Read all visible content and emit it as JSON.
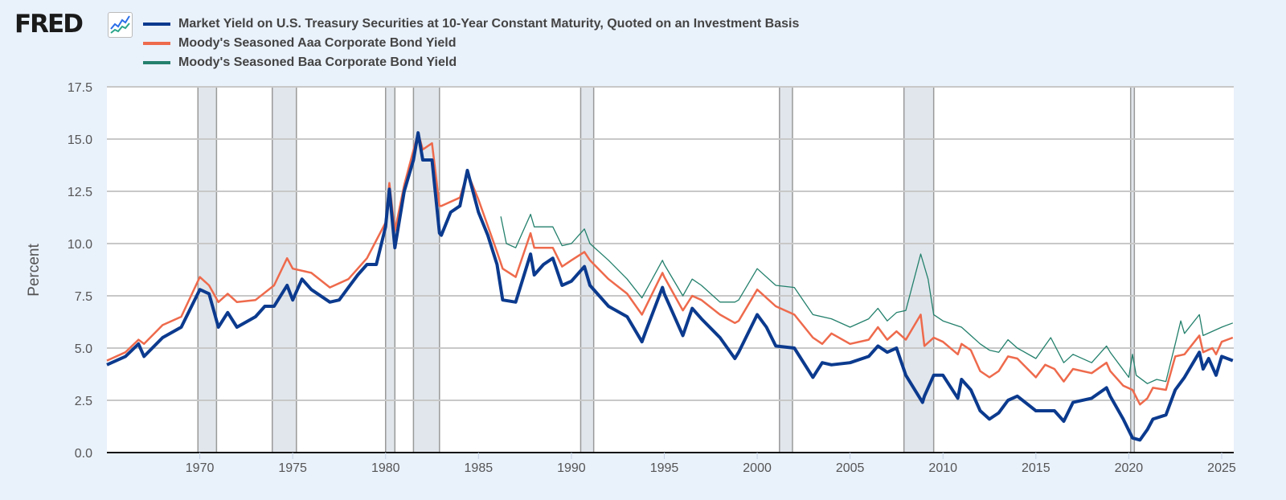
{
  "logo": {
    "text": "FRED",
    "icon": "chart-line-icon"
  },
  "chart_data": {
    "type": "line",
    "title": "",
    "xlabel": "",
    "ylabel": "Percent",
    "xlim": [
      1965.0,
      2025.65
    ],
    "ylim": [
      0,
      17.5
    ],
    "yticks": [
      "0.0",
      "2.5",
      "5.0",
      "7.5",
      "10.0",
      "12.5",
      "15.0",
      "17.5"
    ],
    "xticks": [
      "1970",
      "1975",
      "1980",
      "1985",
      "1990",
      "1995",
      "2000",
      "2005",
      "2010",
      "2015",
      "2020",
      "2025"
    ],
    "grid": true,
    "legend_position": "top-left",
    "recessions": [
      [
        1969.9,
        1970.9
      ],
      [
        1973.9,
        1975.2
      ],
      [
        1980.0,
        1980.5
      ],
      [
        1981.5,
        1982.9
      ],
      [
        1990.5,
        1991.2
      ],
      [
        2001.2,
        2001.9
      ],
      [
        2007.9,
        2009.5
      ],
      [
        2020.1,
        2020.3
      ]
    ],
    "series": [
      {
        "name": "Market Yield on U.S. Treasury Securities at 10-Year Constant Maturity, Quoted on an Investment Basis",
        "color": "#0b3a8e",
        "width": 4,
        "points": [
          [
            1965,
            4.2
          ],
          [
            1966,
            4.6
          ],
          [
            1966.7,
            5.2
          ],
          [
            1967,
            4.6
          ],
          [
            1968,
            5.5
          ],
          [
            1969,
            6.0
          ],
          [
            1970,
            7.8
          ],
          [
            1970.5,
            7.6
          ],
          [
            1971,
            6.0
          ],
          [
            1971.5,
            6.7
          ],
          [
            1972,
            6.0
          ],
          [
            1973,
            6.5
          ],
          [
            1973.5,
            7.0
          ],
          [
            1974,
            7.0
          ],
          [
            1974.7,
            8.0
          ],
          [
            1975,
            7.3
          ],
          [
            1975.5,
            8.3
          ],
          [
            1976,
            7.8
          ],
          [
            1977,
            7.2
          ],
          [
            1977.5,
            7.3
          ],
          [
            1978,
            7.9
          ],
          [
            1978.5,
            8.5
          ],
          [
            1979,
            9.0
          ],
          [
            1979.5,
            9.0
          ],
          [
            1980,
            10.8
          ],
          [
            1980.2,
            12.6
          ],
          [
            1980.5,
            9.8
          ],
          [
            1981,
            12.5
          ],
          [
            1981.5,
            14.0
          ],
          [
            1981.75,
            15.3
          ],
          [
            1982,
            14.0
          ],
          [
            1982.5,
            14.0
          ],
          [
            1982.9,
            10.5
          ],
          [
            1983,
            10.4
          ],
          [
            1983.5,
            11.5
          ],
          [
            1984,
            11.8
          ],
          [
            1984.4,
            13.5
          ],
          [
            1985,
            11.5
          ],
          [
            1985.5,
            10.4
          ],
          [
            1986,
            9.0
          ],
          [
            1986.3,
            7.3
          ],
          [
            1987,
            7.2
          ],
          [
            1987.8,
            9.5
          ],
          [
            1988,
            8.5
          ],
          [
            1988.5,
            9.0
          ],
          [
            1989,
            9.3
          ],
          [
            1989.5,
            8.0
          ],
          [
            1990,
            8.2
          ],
          [
            1990.7,
            8.9
          ],
          [
            1991,
            8.0
          ],
          [
            1992,
            7.0
          ],
          [
            1993,
            6.5
          ],
          [
            1993.8,
            5.3
          ],
          [
            1994,
            5.8
          ],
          [
            1994.9,
            7.9
          ],
          [
            1995,
            7.6
          ],
          [
            1996,
            5.6
          ],
          [
            1996.5,
            6.9
          ],
          [
            1997,
            6.4
          ],
          [
            1998,
            5.5
          ],
          [
            1998.8,
            4.5
          ],
          [
            1999,
            4.8
          ],
          [
            2000,
            6.6
          ],
          [
            2000.5,
            6.0
          ],
          [
            2001,
            5.1
          ],
          [
            2002,
            5.0
          ],
          [
            2003,
            3.6
          ],
          [
            2003.5,
            4.3
          ],
          [
            2004,
            4.2
          ],
          [
            2005,
            4.3
          ],
          [
            2006,
            4.6
          ],
          [
            2006.5,
            5.1
          ],
          [
            2007,
            4.8
          ],
          [
            2007.5,
            5.0
          ],
          [
            2008,
            3.7
          ],
          [
            2008.9,
            2.4
          ],
          [
            2009,
            2.7
          ],
          [
            2009.5,
            3.7
          ],
          [
            2010,
            3.7
          ],
          [
            2010.8,
            2.6
          ],
          [
            2011,
            3.5
          ],
          [
            2011.5,
            3.0
          ],
          [
            2012,
            2.0
          ],
          [
            2012.5,
            1.6
          ],
          [
            2013,
            1.9
          ],
          [
            2013.5,
            2.5
          ],
          [
            2014,
            2.7
          ],
          [
            2015,
            2.0
          ],
          [
            2016,
            2.0
          ],
          [
            2016.5,
            1.5
          ],
          [
            2017,
            2.4
          ],
          [
            2018,
            2.6
          ],
          [
            2018.8,
            3.1
          ],
          [
            2019,
            2.7
          ],
          [
            2019.7,
            1.6
          ],
          [
            2020.2,
            0.7
          ],
          [
            2020.6,
            0.6
          ],
          [
            2021,
            1.1
          ],
          [
            2021.3,
            1.6
          ],
          [
            2022,
            1.8
          ],
          [
            2022.5,
            3.0
          ],
          [
            2023,
            3.6
          ],
          [
            2023.8,
            4.8
          ],
          [
            2024,
            4.0
          ],
          [
            2024.3,
            4.5
          ],
          [
            2024.7,
            3.7
          ],
          [
            2025,
            4.6
          ],
          [
            2025.6,
            4.4
          ]
        ]
      },
      {
        "name": "Moody's Seasoned Aaa Corporate Bond Yield",
        "color": "#ee6a4c",
        "width": 2.5,
        "points": [
          [
            1965,
            4.4
          ],
          [
            1966,
            4.8
          ],
          [
            1966.7,
            5.4
          ],
          [
            1967,
            5.2
          ],
          [
            1968,
            6.1
          ],
          [
            1969,
            6.5
          ],
          [
            1970,
            8.4
          ],
          [
            1970.5,
            8.0
          ],
          [
            1971,
            7.2
          ],
          [
            1971.5,
            7.6
          ],
          [
            1972,
            7.2
          ],
          [
            1973,
            7.3
          ],
          [
            1974,
            8.0
          ],
          [
            1974.7,
            9.3
          ],
          [
            1975,
            8.8
          ],
          [
            1976,
            8.6
          ],
          [
            1977,
            7.9
          ],
          [
            1978,
            8.3
          ],
          [
            1979,
            9.3
          ],
          [
            1980,
            11.0
          ],
          [
            1980.2,
            12.9
          ],
          [
            1980.5,
            10.6
          ],
          [
            1981,
            12.8
          ],
          [
            1981.75,
            15.3
          ],
          [
            1982,
            14.5
          ],
          [
            1982.5,
            14.8
          ],
          [
            1982.9,
            11.8
          ],
          [
            1983,
            11.8
          ],
          [
            1984,
            12.2
          ],
          [
            1984.4,
            13.4
          ],
          [
            1985,
            12.1
          ],
          [
            1986,
            9.6
          ],
          [
            1986.3,
            8.8
          ],
          [
            1987,
            8.4
          ],
          [
            1987.8,
            10.5
          ],
          [
            1988,
            9.8
          ],
          [
            1989,
            9.8
          ],
          [
            1989.5,
            8.9
          ],
          [
            1990,
            9.2
          ],
          [
            1990.7,
            9.6
          ],
          [
            1991,
            9.2
          ],
          [
            1992,
            8.3
          ],
          [
            1993,
            7.6
          ],
          [
            1993.8,
            6.6
          ],
          [
            1994.9,
            8.6
          ],
          [
            1995,
            8.4
          ],
          [
            1996,
            6.8
          ],
          [
            1996.5,
            7.5
          ],
          [
            1997,
            7.3
          ],
          [
            1998,
            6.6
          ],
          [
            1998.8,
            6.2
          ],
          [
            1999,
            6.3
          ],
          [
            2000,
            7.8
          ],
          [
            2001,
            7.0
          ],
          [
            2002,
            6.6
          ],
          [
            2003,
            5.5
          ],
          [
            2003.5,
            5.2
          ],
          [
            2004,
            5.7
          ],
          [
            2005,
            5.2
          ],
          [
            2006,
            5.4
          ],
          [
            2006.5,
            6.0
          ],
          [
            2007,
            5.4
          ],
          [
            2007.5,
            5.8
          ],
          [
            2008,
            5.4
          ],
          [
            2008.8,
            6.6
          ],
          [
            2009,
            5.1
          ],
          [
            2009.5,
            5.5
          ],
          [
            2010,
            5.3
          ],
          [
            2010.8,
            4.7
          ],
          [
            2011,
            5.2
          ],
          [
            2011.5,
            4.9
          ],
          [
            2012,
            3.9
          ],
          [
            2012.5,
            3.6
          ],
          [
            2013,
            3.9
          ],
          [
            2013.5,
            4.6
          ],
          [
            2014,
            4.5
          ],
          [
            2015,
            3.6
          ],
          [
            2015.5,
            4.2
          ],
          [
            2016,
            4.0
          ],
          [
            2016.5,
            3.4
          ],
          [
            2017,
            4.0
          ],
          [
            2018,
            3.8
          ],
          [
            2018.8,
            4.3
          ],
          [
            2019,
            3.9
          ],
          [
            2019.7,
            3.2
          ],
          [
            2020.2,
            3.0
          ],
          [
            2020.6,
            2.3
          ],
          [
            2021,
            2.6
          ],
          [
            2021.3,
            3.1
          ],
          [
            2022,
            3.0
          ],
          [
            2022.5,
            4.6
          ],
          [
            2023,
            4.7
          ],
          [
            2023.8,
            5.6
          ],
          [
            2024,
            4.8
          ],
          [
            2024.5,
            5.0
          ],
          [
            2024.7,
            4.7
          ],
          [
            2025,
            5.3
          ],
          [
            2025.6,
            5.5
          ]
        ]
      },
      {
        "name": "Moody's Seasoned Baa Corporate Bond Yield",
        "color": "#23806c",
        "width": 1.3,
        "points": [
          [
            1986.2,
            11.3
          ],
          [
            1986.5,
            10.0
          ],
          [
            1987,
            9.8
          ],
          [
            1987.8,
            11.4
          ],
          [
            1988,
            10.8
          ],
          [
            1989,
            10.8
          ],
          [
            1989.5,
            9.9
          ],
          [
            1990,
            10.0
          ],
          [
            1990.7,
            10.7
          ],
          [
            1991,
            10.0
          ],
          [
            1992,
            9.2
          ],
          [
            1993,
            8.3
          ],
          [
            1993.8,
            7.4
          ],
          [
            1994.9,
            9.2
          ],
          [
            1995,
            9.0
          ],
          [
            1996,
            7.5
          ],
          [
            1996.5,
            8.3
          ],
          [
            1997,
            8.0
          ],
          [
            1998,
            7.2
          ],
          [
            1998.8,
            7.2
          ],
          [
            1999,
            7.3
          ],
          [
            2000,
            8.8
          ],
          [
            2001,
            8.0
          ],
          [
            2002,
            7.9
          ],
          [
            2003,
            6.6
          ],
          [
            2004,
            6.4
          ],
          [
            2005,
            6.0
          ],
          [
            2006,
            6.4
          ],
          [
            2006.5,
            6.9
          ],
          [
            2007,
            6.3
          ],
          [
            2007.5,
            6.7
          ],
          [
            2008,
            6.8
          ],
          [
            2008.8,
            9.5
          ],
          [
            2009.2,
            8.3
          ],
          [
            2009.5,
            6.6
          ],
          [
            2010,
            6.3
          ],
          [
            2011,
            6.0
          ],
          [
            2011.5,
            5.6
          ],
          [
            2012,
            5.2
          ],
          [
            2012.5,
            4.9
          ],
          [
            2013,
            4.8
          ],
          [
            2013.5,
            5.4
          ],
          [
            2014,
            5.0
          ],
          [
            2015,
            4.5
          ],
          [
            2015.8,
            5.5
          ],
          [
            2016.5,
            4.3
          ],
          [
            2017,
            4.7
          ],
          [
            2018,
            4.3
          ],
          [
            2018.8,
            5.1
          ],
          [
            2019,
            4.8
          ],
          [
            2020,
            3.6
          ],
          [
            2020.2,
            4.7
          ],
          [
            2020.4,
            3.7
          ],
          [
            2021,
            3.3
          ],
          [
            2021.5,
            3.5
          ],
          [
            2022,
            3.4
          ],
          [
            2022.5,
            5.2
          ],
          [
            2022.8,
            6.3
          ],
          [
            2023,
            5.7
          ],
          [
            2023.8,
            6.6
          ],
          [
            2024,
            5.6
          ],
          [
            2025,
            6.0
          ],
          [
            2025.6,
            6.2
          ]
        ]
      }
    ]
  }
}
